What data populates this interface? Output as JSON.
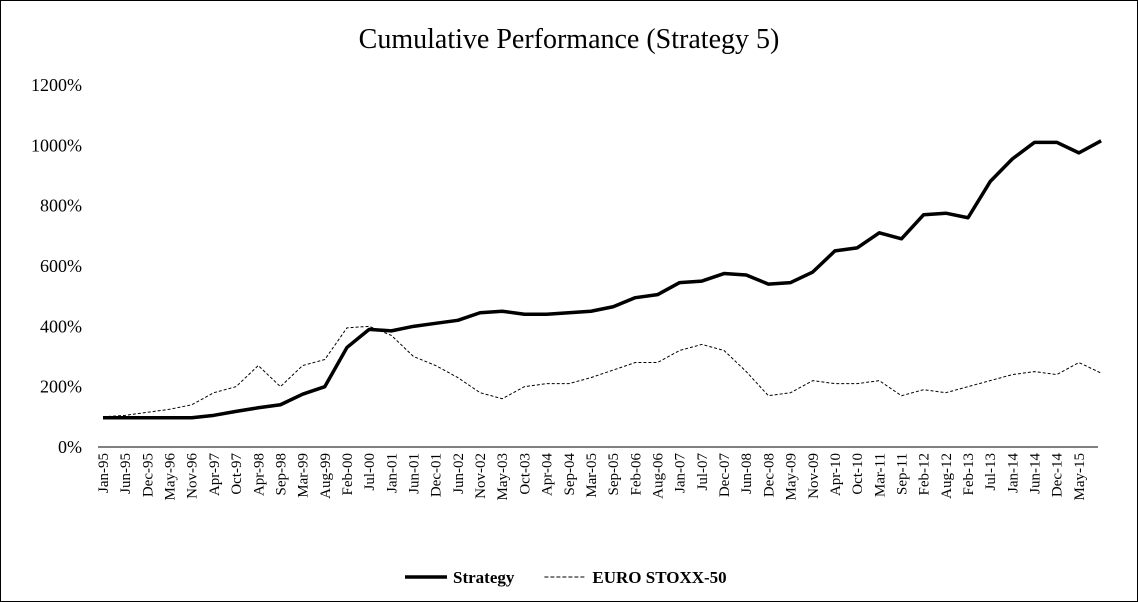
{
  "chart_data": {
    "type": "line",
    "title": "Cumulative Performance (Strategy 5)",
    "categories": [
      "Jan-95",
      "Jun-95",
      "Dec-95",
      "May-96",
      "Nov-96",
      "Apr-97",
      "Oct-97",
      "Apr-98",
      "Sep-98",
      "Mar-99",
      "Aug-99",
      "Feb-00",
      "Jul-00",
      "Jan-01",
      "Jun-01",
      "Dec-01",
      "Jun-02",
      "Nov-02",
      "May-03",
      "Oct-03",
      "Apr-04",
      "Sep-04",
      "Mar-05",
      "Sep-05",
      "Feb-06",
      "Aug-06",
      "Jan-07",
      "Jul-07",
      "Dec-07",
      "Jun-08",
      "Dec-08",
      "May-09",
      "Nov-09",
      "Apr-10",
      "Oct-10",
      "Mar-11",
      "Sep-11",
      "Feb-12",
      "Aug-12",
      "Feb-13",
      "Jul-13",
      "Jan-14",
      "Jun-14",
      "Dec-14",
      "May-15",
      null
    ],
    "series": [
      {
        "name": "Strategy",
        "color": "#000000",
        "line_style": "solid",
        "values": [
          97,
          97,
          97,
          97,
          97,
          105,
          118,
          130,
          140,
          175,
          200,
          330,
          390,
          385,
          400,
          410,
          420,
          445,
          450,
          440,
          440,
          445,
          450,
          465,
          495,
          505,
          545,
          550,
          575,
          570,
          540,
          545,
          580,
          650,
          660,
          710,
          690,
          770,
          775,
          760,
          880,
          955,
          1010,
          1010,
          975,
          1015
        ]
      },
      {
        "name": "EURO STOXX-50",
        "color": "#000000",
        "line_style": "dashed",
        "values": [
          100,
          105,
          115,
          125,
          140,
          180,
          200,
          270,
          200,
          270,
          290,
          395,
          400,
          370,
          300,
          270,
          230,
          180,
          160,
          200,
          210,
          210,
          230,
          255,
          280,
          280,
          320,
          340,
          320,
          250,
          170,
          180,
          220,
          210,
          210,
          220,
          170,
          190,
          180,
          200,
          220,
          240,
          250,
          240,
          280,
          245
        ]
      }
    ],
    "ylim": [
      0,
      1200
    ],
    "yticks": [
      {
        "value": 0,
        "label": "0%"
      },
      {
        "value": 200,
        "label": "200%"
      },
      {
        "value": 400,
        "label": "400%"
      },
      {
        "value": 600,
        "label": "600%"
      },
      {
        "value": 800,
        "label": "800%"
      },
      {
        "value": 1000,
        "label": "1000%"
      },
      {
        "value": 1200,
        "label": "1200%"
      }
    ],
    "grid": false,
    "legend": "bottom"
  }
}
